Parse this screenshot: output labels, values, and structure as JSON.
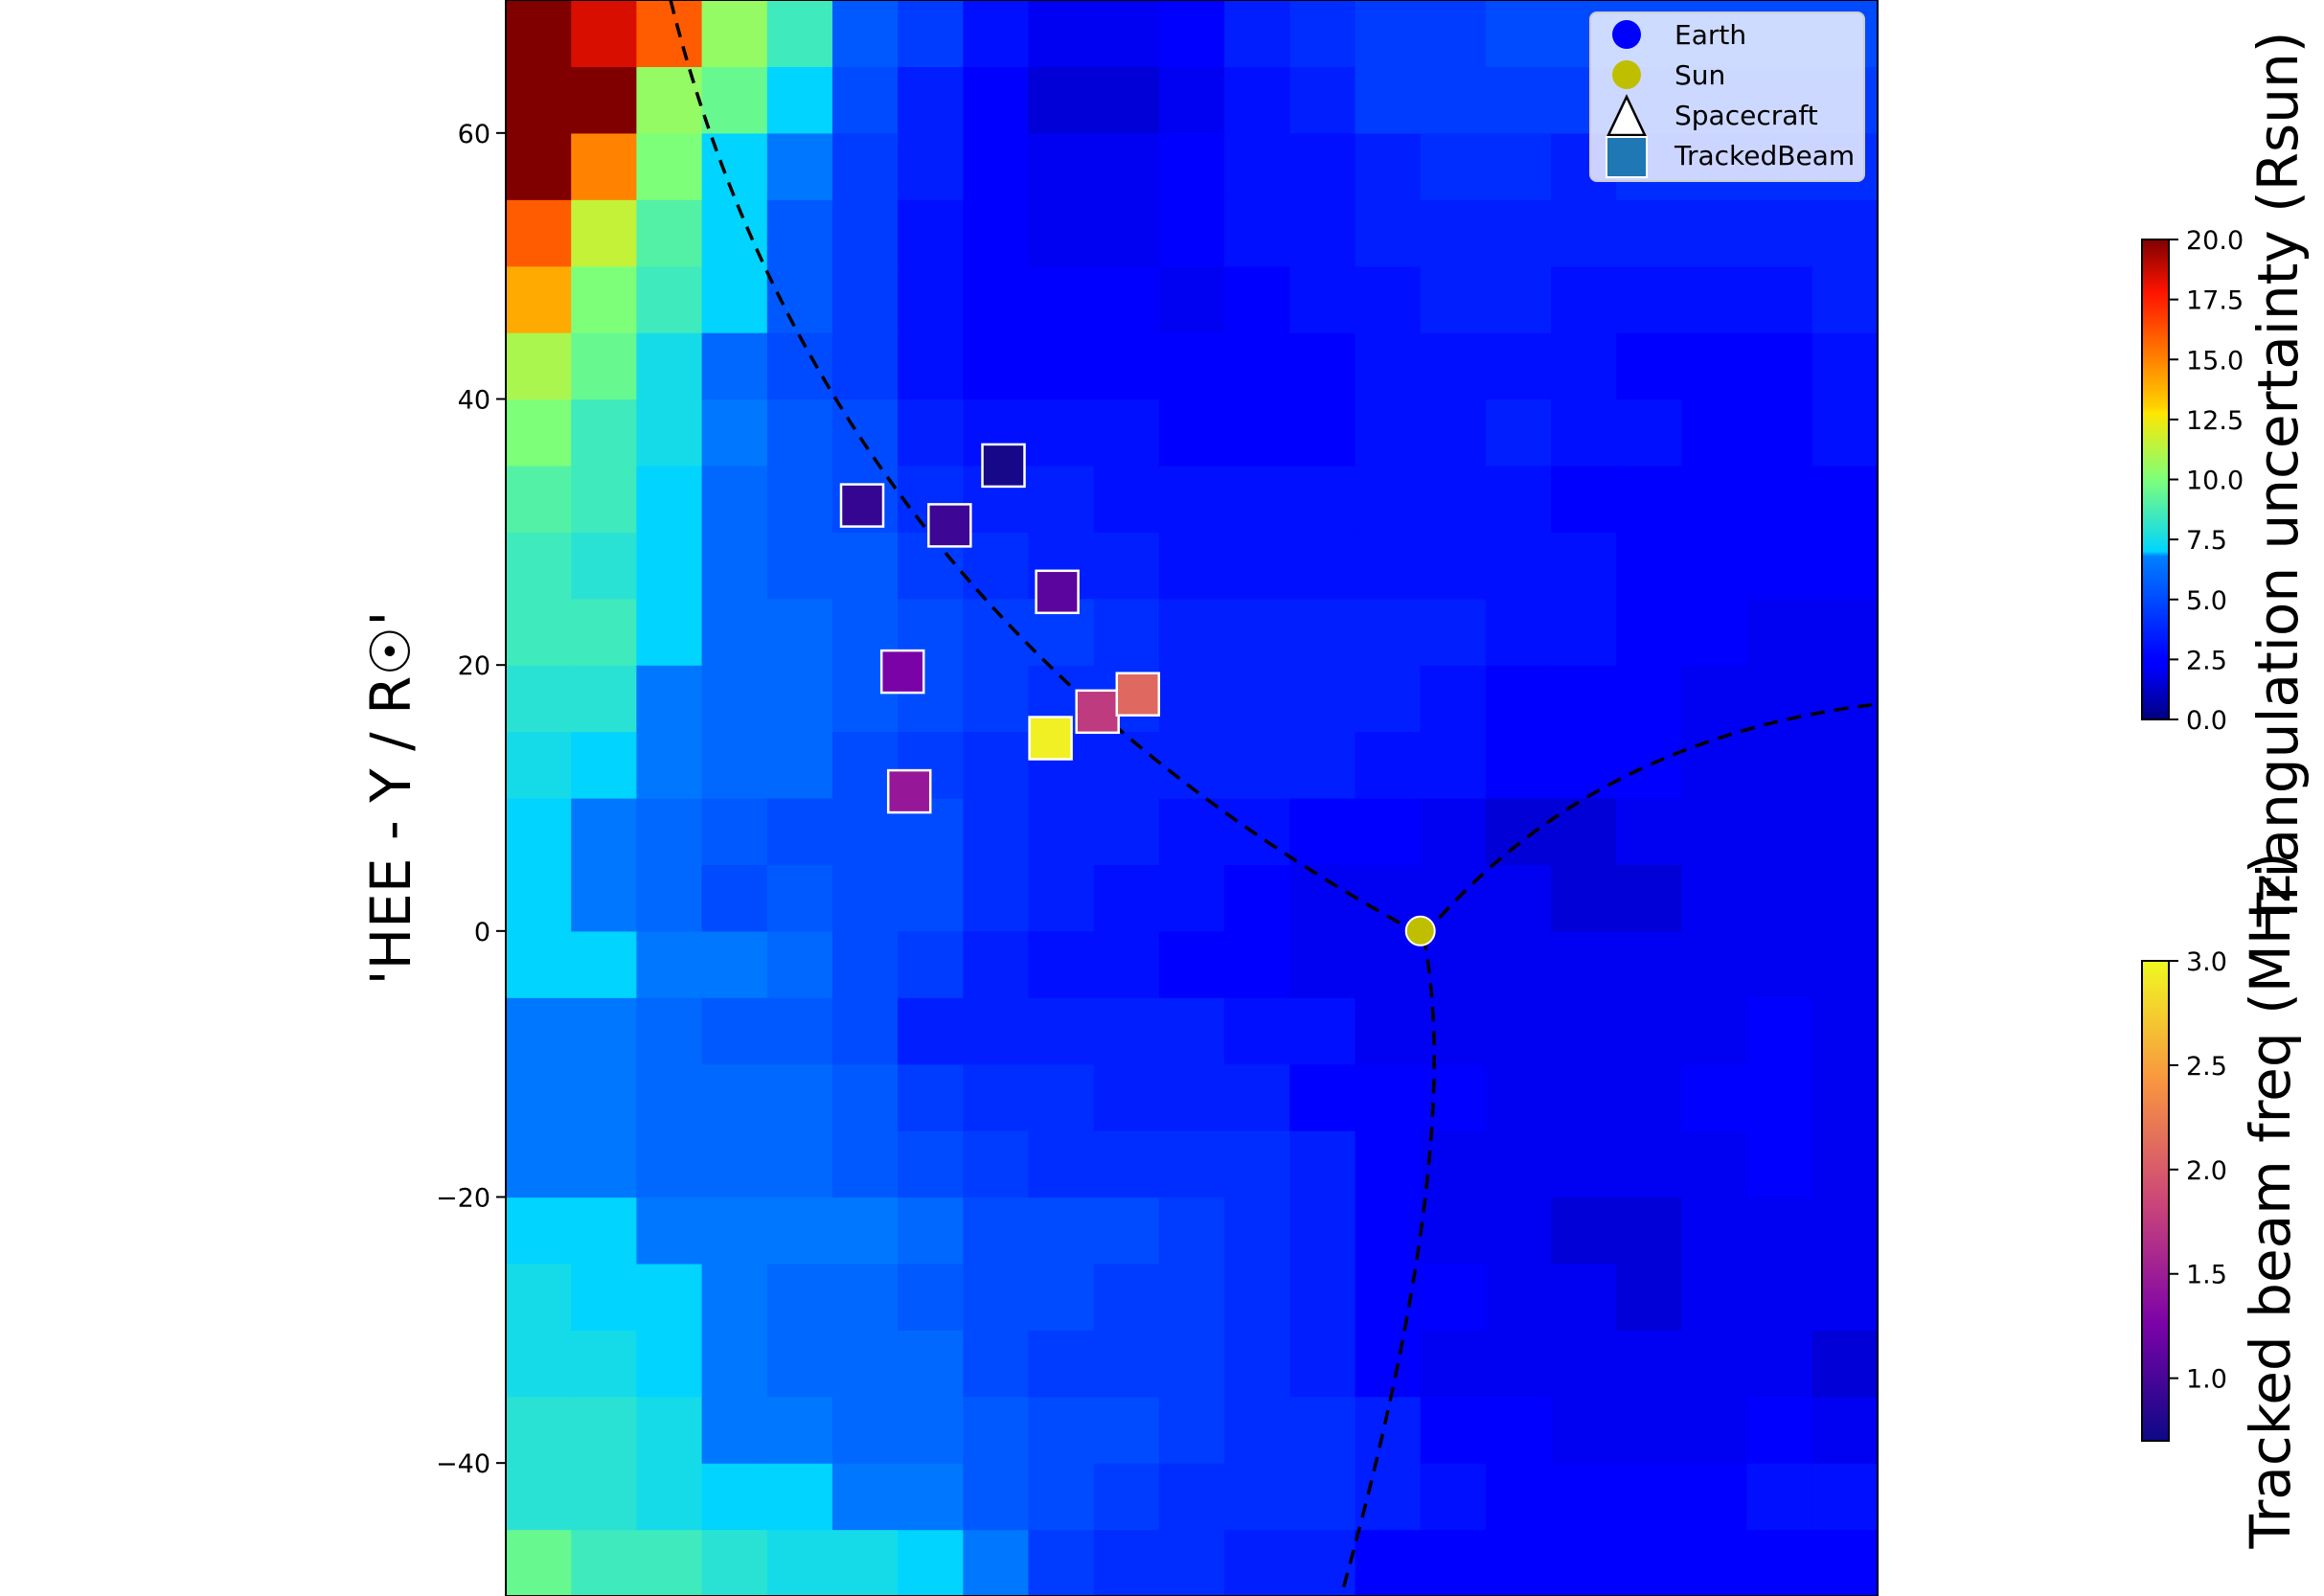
{
  "chart_data": {
    "type": "heatmap",
    "title": "",
    "xlabel": "",
    "ylabel": "'HEE - Y / R☉'",
    "x_range": [
      -50,
      52
    ],
    "x_cells": 21,
    "y_range": [
      -50,
      70
    ],
    "y_cells": 24,
    "yticks": [
      -40,
      -20,
      0,
      20,
      40,
      60
    ],
    "grid": false,
    "colormap": "jet",
    "heatmap_values": [
      [
        9.5,
        8.5,
        8.5,
        8.0,
        7.5,
        7.5,
        7.0,
        6.5,
        4.5,
        4.0,
        4.0,
        3.5,
        3.5,
        2.5,
        2.5,
        2.5,
        2.5,
        2.5,
        2.5,
        2.5,
        2.5
      ],
      [
        8.0,
        8.0,
        7.5,
        7.0,
        7.0,
        6.5,
        6.5,
        5.5,
        5.0,
        4.5,
        4.0,
        4.0,
        4.0,
        3.5,
        3.0,
        2.5,
        2.5,
        2.5,
        2.5,
        3.0,
        3.0
      ],
      [
        8.0,
        8.0,
        7.5,
        6.5,
        6.5,
        6.0,
        6.0,
        5.5,
        5.0,
        5.0,
        4.5,
        4.0,
        4.0,
        3.5,
        2.5,
        2.5,
        2.0,
        2.0,
        2.0,
        2.5,
        2.0
      ],
      [
        7.5,
        7.5,
        7.0,
        6.5,
        6.0,
        6.0,
        6.0,
        5.0,
        4.5,
        4.5,
        4.5,
        4.0,
        3.5,
        2.5,
        2.0,
        2.0,
        2.0,
        2.0,
        2.0,
        2.0,
        1.5
      ],
      [
        7.5,
        7.0,
        7.0,
        6.5,
        6.0,
        6.0,
        5.5,
        5.0,
        5.0,
        4.5,
        4.5,
        4.0,
        3.5,
        2.5,
        2.5,
        2.0,
        2.0,
        1.5,
        2.0,
        2.0,
        2.0
      ],
      [
        7.0,
        7.0,
        6.5,
        6.5,
        6.5,
        6.5,
        6.0,
        5.0,
        5.0,
        5.0,
        4.5,
        4.0,
        3.5,
        2.5,
        2.0,
        2.0,
        1.5,
        1.5,
        2.0,
        2.0,
        2.0
      ],
      [
        6.5,
        6.5,
        6.0,
        6.0,
        6.0,
        5.5,
        5.0,
        4.5,
        4.0,
        4.0,
        4.0,
        4.0,
        3.5,
        2.5,
        2.0,
        2.0,
        2.0,
        2.0,
        2.0,
        2.5,
        2.0
      ],
      [
        6.5,
        6.5,
        6.0,
        6.0,
        6.0,
        5.5,
        4.5,
        4.0,
        4.0,
        3.5,
        3.5,
        3.5,
        2.5,
        2.5,
        2.5,
        2.0,
        2.0,
        2.0,
        2.5,
        2.5,
        2.0
      ],
      [
        6.5,
        6.5,
        6.0,
        5.5,
        5.5,
        5.0,
        3.5,
        3.5,
        3.5,
        3.5,
        3.5,
        3.0,
        3.0,
        2.0,
        2.0,
        2.0,
        2.0,
        2.0,
        2.0,
        2.5,
        2.0
      ],
      [
        7.0,
        7.0,
        6.5,
        6.5,
        6.0,
        5.0,
        4.5,
        3.5,
        3.0,
        3.0,
        2.5,
        2.5,
        2.0,
        2.0,
        2.0,
        2.0,
        2.0,
        2.0,
        2.0,
        2.0,
        2.0
      ],
      [
        7.0,
        6.5,
        6.0,
        5.0,
        5.5,
        5.0,
        5.0,
        4.0,
        3.5,
        3.0,
        3.0,
        2.5,
        2.0,
        2.0,
        2.0,
        2.0,
        1.5,
        1.5,
        2.0,
        2.0,
        2.0
      ],
      [
        7.0,
        6.5,
        6.0,
        5.5,
        5.0,
        5.0,
        5.0,
        4.0,
        3.5,
        3.5,
        3.0,
        3.0,
        2.5,
        2.5,
        2.0,
        1.5,
        1.5,
        2.0,
        2.0,
        2.0,
        2.0
      ],
      [
        7.5,
        7.0,
        6.5,
        6.0,
        6.0,
        5.0,
        4.5,
        4.0,
        3.5,
        3.5,
        3.5,
        3.5,
        3.5,
        3.0,
        3.0,
        2.5,
        2.5,
        2.5,
        2.0,
        2.0,
        2.0
      ],
      [
        8.0,
        8.0,
        6.5,
        6.0,
        6.0,
        5.5,
        5.0,
        4.5,
        4.0,
        4.0,
        3.5,
        3.5,
        3.5,
        3.5,
        3.0,
        2.5,
        2.5,
        2.5,
        2.0,
        2.0,
        2.0
      ],
      [
        8.5,
        8.5,
        7.0,
        6.0,
        6.0,
        5.5,
        5.0,
        4.5,
        4.5,
        4.0,
        3.5,
        3.5,
        3.5,
        3.5,
        3.5,
        3.0,
        3.0,
        2.5,
        2.5,
        2.0,
        2.0
      ],
      [
        8.5,
        8.0,
        7.0,
        6.0,
        5.5,
        5.5,
        4.5,
        4.0,
        3.5,
        3.5,
        3.0,
        3.0,
        3.0,
        3.0,
        3.0,
        3.0,
        3.0,
        2.5,
        2.5,
        2.5,
        2.5
      ],
      [
        9.0,
        8.5,
        7.0,
        6.0,
        5.5,
        5.0,
        4.0,
        3.5,
        3.5,
        3.0,
        3.0,
        3.0,
        3.0,
        3.0,
        3.0,
        3.0,
        2.5,
        2.5,
        2.5,
        2.5,
        2.5
      ],
      [
        10.0,
        8.5,
        7.5,
        6.5,
        5.5,
        5.0,
        3.5,
        3.0,
        3.0,
        3.0,
        2.5,
        2.5,
        2.5,
        3.0,
        3.0,
        3.5,
        3.0,
        3.0,
        2.5,
        2.5,
        3.0
      ],
      [
        11.0,
        9.5,
        7.5,
        6.0,
        5.0,
        4.5,
        3.0,
        2.5,
        2.5,
        2.5,
        2.5,
        2.5,
        2.5,
        3.0,
        3.0,
        3.0,
        3.0,
        2.5,
        2.5,
        2.5,
        3.0
      ],
      [
        14.0,
        10.0,
        8.5,
        7.0,
        5.5,
        4.5,
        3.0,
        2.5,
        2.5,
        2.5,
        2.0,
        2.5,
        3.0,
        3.0,
        3.5,
        3.5,
        3.0,
        3.0,
        3.0,
        3.0,
        3.5
      ],
      [
        16.0,
        11.5,
        9.0,
        7.0,
        5.5,
        4.5,
        3.0,
        2.5,
        2.0,
        2.0,
        2.5,
        3.0,
        3.0,
        3.5,
        3.5,
        3.5,
        3.5,
        3.5,
        3.5,
        3.5,
        3.5
      ],
      [
        20.0,
        15.0,
        10.0,
        7.0,
        6.5,
        4.5,
        3.5,
        2.5,
        2.0,
        2.0,
        2.5,
        3.0,
        3.0,
        3.5,
        4.0,
        4.0,
        3.5,
        4.0,
        4.0,
        4.0,
        4.0
      ],
      [
        20.0,
        20.0,
        10.5,
        9.5,
        7.0,
        5.0,
        3.5,
        2.5,
        1.5,
        1.5,
        2.0,
        3.0,
        3.5,
        4.5,
        4.5,
        4.5,
        4.5,
        4.5,
        4.5,
        4.5,
        4.5
      ],
      [
        20.0,
        18.5,
        16.0,
        10.5,
        8.5,
        5.5,
        4.5,
        3.0,
        2.0,
        2.0,
        2.5,
        3.5,
        4.0,
        4.5,
        4.5,
        5.0,
        5.0,
        5.0,
        5.0,
        5.0,
        5.0
      ]
    ],
    "colorbar_uncertainty": {
      "label": "Triangulation uncertainty (Rsun)",
      "range": [
        0,
        20
      ],
      "ticks": [
        "0.0",
        "2.5",
        "5.0",
        "7.5",
        "10.0",
        "12.5",
        "15.0",
        "17.5",
        "20.0"
      ]
    },
    "colorbar_freq": {
      "label": "Tracked beam freq (MHz)",
      "range": [
        0.7,
        3.0
      ],
      "ticks": [
        "1.0",
        "1.5",
        "2.0",
        "2.5",
        "3.0"
      ],
      "colormap": "plasma"
    },
    "tracked_beam": [
      {
        "x": -13,
        "y": 35,
        "freq": 0.75
      },
      {
        "x": -23.5,
        "y": 32,
        "freq": 0.9
      },
      {
        "x": -17,
        "y": 30.5,
        "freq": 0.95
      },
      {
        "x": -9,
        "y": 25.5,
        "freq": 1.1
      },
      {
        "x": -20.5,
        "y": 19.5,
        "freq": 1.25
      },
      {
        "x": -6,
        "y": 16.5,
        "freq": 1.75
      },
      {
        "x": -3,
        "y": 17.8,
        "freq": 2.1
      },
      {
        "x": -9.5,
        "y": 14.5,
        "freq": 2.95
      },
      {
        "x": -20,
        "y": 10.5,
        "freq": 1.45
      }
    ],
    "sun": {
      "x": 18,
      "y": 0
    },
    "legend": {
      "placement": "top-right",
      "entries": [
        {
          "label": "Earth",
          "marker": "circle",
          "color": "#0000ff"
        },
        {
          "label": "Sun",
          "marker": "circle",
          "color": "#bfbf00"
        },
        {
          "label": "Spacecraft",
          "marker": "triangle",
          "color": "#ffffff"
        },
        {
          "label": "TrackedBeam",
          "marker": "square",
          "color": "#1f77b4"
        }
      ]
    }
  }
}
